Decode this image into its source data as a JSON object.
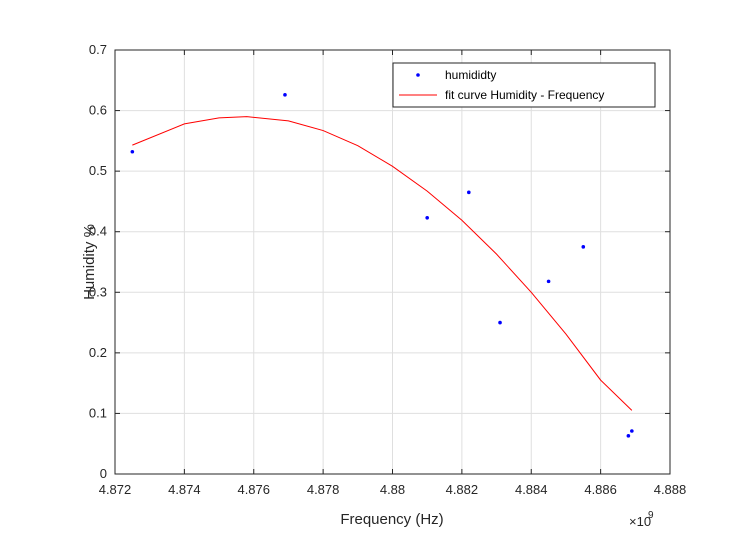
{
  "chart_data": {
    "type": "scatter",
    "xlabel": "Frequency (Hz)",
    "ylabel": "Humidity %",
    "x_exponent_label": "×10",
    "x_exponent_power": "9",
    "x_scale": 1000000000,
    "xlim": [
      4.872,
      4.888
    ],
    "ylim": [
      0,
      0.7
    ],
    "x_ticks": [
      "4.872",
      "4.874",
      "4.876",
      "4.878",
      "4.88",
      "4.882",
      "4.884",
      "4.886",
      "4.888"
    ],
    "y_ticks": [
      "0",
      "0.1",
      "0.2",
      "0.3",
      "0.4",
      "0.5",
      "0.6",
      "0.7"
    ],
    "grid": true,
    "legend_position": "top-right",
    "series": [
      {
        "name": "humididty",
        "kind": "scatter",
        "color": "#0000ff",
        "x": [
          4.8725,
          4.8769,
          4.881,
          4.8822,
          4.8831,
          4.8845,
          4.8855,
          4.8868,
          4.8869
        ],
        "y": [
          0.532,
          0.626,
          0.423,
          0.465,
          0.25,
          0.318,
          0.375,
          0.063,
          0.071
        ]
      },
      {
        "name": "fit curve Humidity - Frequency",
        "kind": "line",
        "color": "#ff0000",
        "x": [
          4.8725,
          4.874,
          4.875,
          4.8758,
          4.877,
          4.878,
          4.879,
          4.88,
          4.881,
          4.882,
          4.883,
          4.884,
          4.885,
          4.886,
          4.8869
        ],
        "y": [
          0.543,
          0.578,
          0.588,
          0.59,
          0.583,
          0.567,
          0.542,
          0.508,
          0.467,
          0.419,
          0.363,
          0.3,
          0.231,
          0.155,
          0.105
        ]
      }
    ]
  }
}
